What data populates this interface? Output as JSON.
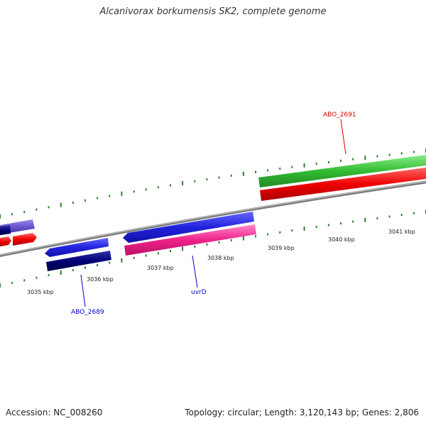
{
  "title": "Alcanivorax borkumensis SK2, complete genome",
  "footer": {
    "accession": "Accession: NC_008260",
    "summary": "Topology: circular; Length: 3,120,143 bp; Genes: 2,806"
  },
  "ticks": [
    {
      "label": "3035 kbp",
      "kbp": 3035
    },
    {
      "label": "3036 kbp",
      "kbp": 3036
    },
    {
      "label": "3037 kbp",
      "kbp": 3037
    },
    {
      "label": "3038 kbp",
      "kbp": 3038
    },
    {
      "label": "3039 kbp",
      "kbp": 3039
    },
    {
      "label": "3040 kbp",
      "kbp": 3040
    },
    {
      "label": "3041 kbp",
      "kbp": 3041
    }
  ],
  "gene_labels": [
    {
      "name": "ABO_2691",
      "color": "#dd0000"
    },
    {
      "name": "uvrD",
      "color": "#0000cc"
    },
    {
      "name": "ABO_2689",
      "color": "#0000cc"
    }
  ],
  "colors": {
    "backbone": "#8a8a8a",
    "tick": "#2e7d32",
    "forward_cds": "#2222dd",
    "reverse_cds": "#dd0000",
    "gene_green": "#33bb33",
    "gene_magenta": "#ee2288",
    "gene_navy": "#000077",
    "gene_lavender": "#6655cc"
  }
}
